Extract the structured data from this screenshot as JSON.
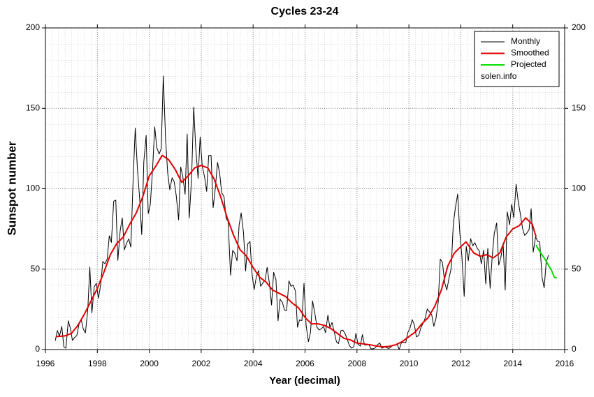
{
  "chart_data": {
    "type": "line",
    "title": "Cycles 23-24",
    "x_label": "Year (decimal)",
    "y_label": "Sunspot number",
    "annotation": "solen.info",
    "xlim": [
      1996,
      2016
    ],
    "xticks": [
      1996,
      1998,
      2000,
      2002,
      2004,
      2006,
      2008,
      2010,
      2012,
      2014,
      2016
    ],
    "ylim": [
      0,
      200
    ],
    "yticks": [
      0,
      50,
      100,
      150,
      200
    ],
    "grid": true,
    "legend": "upper right",
    "series": [
      {
        "name": "Monthly",
        "color": "#000000",
        "width": 1,
        "x": [
          1996.38,
          1996.46,
          1996.54,
          1996.63,
          1996.71,
          1996.79,
          1996.88,
          1996.96,
          1997.04,
          1997.13,
          1997.21,
          1997.29,
          1997.38,
          1997.46,
          1997.54,
          1997.63,
          1997.71,
          1997.79,
          1997.88,
          1997.96,
          1998.04,
          1998.13,
          1998.21,
          1998.29,
          1998.38,
          1998.46,
          1998.54,
          1998.63,
          1998.71,
          1998.79,
          1998.88,
          1998.96,
          1999.04,
          1999.13,
          1999.21,
          1999.29,
          1999.38,
          1999.46,
          1999.54,
          1999.63,
          1999.71,
          1999.79,
          1999.88,
          1999.96,
          2000.04,
          2000.13,
          2000.21,
          2000.29,
          2000.38,
          2000.46,
          2000.54,
          2000.63,
          2000.71,
          2000.79,
          2000.88,
          2000.96,
          2001.04,
          2001.13,
          2001.21,
          2001.29,
          2001.38,
          2001.46,
          2001.54,
          2001.63,
          2001.71,
          2001.79,
          2001.88,
          2001.96,
          2002.04,
          2002.13,
          2002.21,
          2002.29,
          2002.38,
          2002.46,
          2002.54,
          2002.63,
          2002.71,
          2002.79,
          2002.88,
          2002.96,
          2003.04,
          2003.13,
          2003.21,
          2003.29,
          2003.38,
          2003.46,
          2003.54,
          2003.63,
          2003.71,
          2003.79,
          2003.88,
          2003.96,
          2004.04,
          2004.13,
          2004.21,
          2004.29,
          2004.38,
          2004.46,
          2004.54,
          2004.63,
          2004.71,
          2004.79,
          2004.88,
          2004.96,
          2005.04,
          2005.13,
          2005.21,
          2005.29,
          2005.38,
          2005.46,
          2005.54,
          2005.63,
          2005.71,
          2005.79,
          2005.88,
          2005.96,
          2006.04,
          2006.13,
          2006.21,
          2006.29,
          2006.38,
          2006.46,
          2006.54,
          2006.63,
          2006.71,
          2006.79,
          2006.88,
          2006.96,
          2007.04,
          2007.13,
          2007.21,
          2007.29,
          2007.38,
          2007.46,
          2007.54,
          2007.63,
          2007.71,
          2007.79,
          2007.88,
          2007.96,
          2008.04,
          2008.13,
          2008.21,
          2008.29,
          2008.38,
          2008.46,
          2008.54,
          2008.63,
          2008.71,
          2008.79,
          2008.88,
          2008.96,
          2009.04,
          2009.13,
          2009.21,
          2009.29,
          2009.38,
          2009.46,
          2009.54,
          2009.63,
          2009.71,
          2009.79,
          2009.88,
          2009.96,
          2010.04,
          2010.13,
          2010.21,
          2010.29,
          2010.38,
          2010.46,
          2010.54,
          2010.63,
          2010.71,
          2010.79,
          2010.88,
          2010.96,
          2011.04,
          2011.13,
          2011.21,
          2011.29,
          2011.38,
          2011.46,
          2011.54,
          2011.63,
          2011.71,
          2011.79,
          2011.88,
          2011.96,
          2012.04,
          2012.13,
          2012.21,
          2012.29,
          2012.38,
          2012.46,
          2012.54,
          2012.63,
          2012.71,
          2012.79,
          2012.88,
          2012.96,
          2013.04,
          2013.13,
          2013.21,
          2013.29,
          2013.38,
          2013.46,
          2013.54,
          2013.63,
          2013.71,
          2013.79,
          2013.88,
          2013.96,
          2014.04,
          2014.13,
          2014.21,
          2014.29,
          2014.38,
          2014.46,
          2014.54,
          2014.63,
          2014.71,
          2014.79,
          2014.88,
          2014.96,
          2015.04,
          2015.13,
          2015.21,
          2015.29,
          2015.38
        ],
        "values": [
          5.5,
          11.8,
          8.2,
          14.4,
          1.6,
          0.9,
          17.9,
          13.3,
          5.7,
          7.6,
          8.7,
          15.5,
          18.5,
          12.7,
          10.4,
          24.4,
          51.3,
          22.8,
          39.0,
          41.2,
          31.9,
          40.3,
          54.8,
          53.4,
          56.3,
          70.7,
          66.6,
          92.2,
          92.9,
          55.5,
          74.0,
          81.9,
          62.0,
          66.3,
          68.8,
          63.7,
          106.4,
          137.7,
          113.5,
          93.7,
          71.5,
          116.7,
          133.2,
          84.6,
          90.1,
          112.9,
          138.5,
          125.5,
          121.6,
          124.9,
          170.1,
          130.5,
          109.7,
          99.4,
          106.8,
          104.4,
          95.6,
          80.6,
          113.5,
          107.7,
          96.6,
          134.0,
          81.8,
          106.4,
          150.7,
          125.5,
          106.5,
          132.2,
          114.1,
          107.4,
          98.4,
          120.7,
          120.8,
          88.3,
          99.6,
          116.4,
          109.6,
          97.5,
          95.0,
          81.6,
          79.5,
          46.2,
          61.5,
          60.0,
          55.2,
          77.4,
          85.0,
          72.7,
          48.8,
          65.6,
          67.2,
          46.7,
          37.3,
          45.8,
          49.1,
          39.3,
          41.5,
          43.2,
          51.1,
          40.9,
          27.7,
          48.0,
          43.5,
          17.9,
          31.3,
          29.2,
          24.5,
          24.2,
          42.7,
          39.3,
          40.1,
          36.4,
          13.9,
          18.5,
          18.0,
          41.2,
          15.3,
          4.9,
          10.6,
          30.2,
          22.3,
          13.9,
          12.2,
          12.9,
          14.4,
          10.5,
          21.4,
          13.6,
          16.9,
          10.6,
          4.8,
          3.7,
          11.7,
          12.0,
          10.0,
          6.2,
          2.4,
          0.9,
          1.7,
          10.1,
          3.4,
          2.1,
          9.3,
          2.9,
          2.9,
          3.1,
          0.5,
          0.5,
          1.1,
          2.9,
          4.1,
          0.8,
          1.5,
          1.4,
          0.7,
          1.2,
          2.9,
          2.6,
          3.5,
          0.0,
          4.2,
          4.6,
          4.2,
          10.6,
          13.1,
          18.6,
          15.4,
          7.9,
          8.8,
          13.5,
          16.1,
          19.6,
          25.2,
          23.5,
          21.6,
          14.5,
          19.0,
          29.4,
          56.2,
          54.4,
          41.6,
          37.0,
          43.9,
          50.6,
          78.0,
          88.0,
          96.7,
          73.0,
          58.3,
          33.1,
          64.2,
          55.2,
          69.0,
          64.5,
          66.5,
          63.0,
          61.4,
          53.3,
          61.8,
          40.8,
          62.9,
          38.1,
          57.9,
          72.4,
          78.7,
          52.5,
          57.0,
          66.0,
          37.0,
          85.6,
          77.6,
          90.3,
          82.0,
          102.8,
          92.2,
          84.7,
          75.2,
          71.0,
          72.4,
          74.6,
          87.6,
          60.6,
          70.1,
          67.3,
          67.0,
          44.8,
          38.4,
          54.4,
          58.8
        ]
      },
      {
        "name": "Smoothed",
        "color": "#e00000",
        "width": 2,
        "x": [
          1996.4,
          1996.75,
          1997.0,
          1997.25,
          1997.5,
          1997.75,
          1998.0,
          1998.25,
          1998.5,
          1998.75,
          1999.0,
          1999.25,
          1999.5,
          1999.75,
          2000.0,
          2000.25,
          2000.5,
          2000.75,
          2001.0,
          2001.25,
          2001.5,
          2001.75,
          2002.0,
          2002.25,
          2002.5,
          2002.75,
          2003.0,
          2003.25,
          2003.5,
          2003.75,
          2004.0,
          2004.25,
          2004.5,
          2004.75,
          2005.0,
          2005.25,
          2005.5,
          2005.75,
          2006.0,
          2006.25,
          2006.5,
          2006.75,
          2007.0,
          2007.25,
          2007.5,
          2007.75,
          2008.0,
          2008.25,
          2008.5,
          2008.75,
          2009.0,
          2009.25,
          2009.5,
          2009.75,
          2010.0,
          2010.25,
          2010.5,
          2010.75,
          2011.0,
          2011.25,
          2011.5,
          2011.75,
          2012.0,
          2012.2,
          2012.5,
          2012.75,
          2013.0,
          2013.25,
          2013.5,
          2013.75,
          2014.0,
          2014.25,
          2014.5,
          2014.75,
          2014.9
        ],
        "values": [
          8.0,
          8.5,
          10,
          15,
          22,
          30,
          38,
          48,
          59,
          66,
          70,
          78,
          85,
          95,
          108,
          114,
          120.8,
          118,
          112,
          104,
          108,
          113,
          114.5,
          113,
          106,
          95,
          82,
          71,
          62,
          58,
          51,
          45,
          42,
          37,
          35,
          33,
          29,
          26,
          20,
          16,
          16,
          15,
          13,
          10,
          7,
          6,
          4,
          3.5,
          3,
          2.2,
          1.7,
          2,
          3,
          5,
          8,
          11,
          16,
          20,
          27,
          37,
          52,
          60,
          64,
          67,
          60,
          58,
          59,
          57,
          60,
          70,
          75,
          77,
          81.9,
          78,
          70
        ]
      },
      {
        "name": "Projected",
        "color": "#00e000",
        "width": 2,
        "x": [
          2014.9,
          2015.0,
          2015.25,
          2015.5,
          2015.6,
          2015.7
        ],
        "values": [
          65,
          62,
          56,
          49,
          45,
          44.5
        ]
      }
    ]
  }
}
